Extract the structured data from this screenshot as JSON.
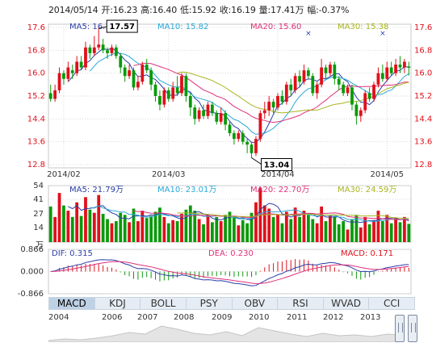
{
  "header": {
    "date": "2014/05/14",
    "open_label": "开:",
    "open": "16.23",
    "high_label": "高:",
    "high": "16.40",
    "low_label": "低:",
    "low": "15.92",
    "close_label": "收:",
    "close": "16.19",
    "vol_label": "量:",
    "volume": "17.41万",
    "chg_label": "幅:",
    "change": "-0.37%"
  },
  "colors": {
    "up": "#e0101b",
    "down": "#0a9a0a",
    "ma5": "#2a3fa8",
    "ma10": "#29a8d8",
    "ma20": "#e0307a",
    "ma30": "#a9b520",
    "grid": "#d9d9d9",
    "axis_up": "#e0101b"
  },
  "price_ma_legend": [
    {
      "label": "MA5: 16.16"
    },
    {
      "label": "MA10: 15.82"
    },
    {
      "label": "MA20: 15.60"
    },
    {
      "label": "MA30: 15.38"
    }
  ],
  "vol_ma_legend": [
    {
      "label": "MA5: 21.79万"
    },
    {
      "label": "MA10: 23.01万"
    },
    {
      "label": "MA20: 22.70万"
    },
    {
      "label": "MA30: 24.59万"
    }
  ],
  "macd_legend": {
    "dif": "DIF: 0.315",
    "dea": "DEA: 0.230",
    "macd": "MACD: 0.171"
  },
  "price_axis_labels": [
    "17.6",
    "16.8",
    "16.0",
    "15.2",
    "14.4",
    "13.6",
    "12.8"
  ],
  "vol_axis_labels": [
    "54",
    "41",
    "27",
    "14",
    "万"
  ],
  "macd_axis_labels": [
    "0.866",
    "0.000",
    "-0.866"
  ],
  "date_labels": [
    "2014/02",
    "2014/03",
    "2014/04",
    "2014/05"
  ],
  "annotations": {
    "high": "17.57",
    "low": "13.04"
  },
  "tabs": [
    "MACD",
    "KDJ",
    "BOLL",
    "PSY",
    "OBV",
    "RSI",
    "WVAD",
    "CCI"
  ],
  "active_tab": "MACD",
  "overview_years": [
    "2004",
    "2006",
    "2007",
    "2008",
    "2009",
    "2010",
    "2011",
    "2012",
    "2013"
  ],
  "chart_data": {
    "type": "candlestick",
    "price_range": [
      12.8,
      17.6
    ],
    "volume_range": [
      0,
      54
    ],
    "macd_range": [
      -0.866,
      0.866
    ],
    "candles": [
      {
        "o": 15.3,
        "c": 15.1,
        "h": 15.6,
        "l": 15.0,
        "v": 34
      },
      {
        "o": 15.1,
        "c": 15.4,
        "h": 15.6,
        "l": 15.0,
        "v": 24
      },
      {
        "o": 15.4,
        "c": 16.0,
        "h": 16.2,
        "l": 15.3,
        "v": 47
      },
      {
        "o": 16.0,
        "c": 15.8,
        "h": 16.1,
        "l": 15.6,
        "v": 35
      },
      {
        "o": 15.8,
        "c": 16.2,
        "h": 16.4,
        "l": 15.7,
        "v": 30
      },
      {
        "o": 16.1,
        "c": 16.0,
        "h": 16.3,
        "l": 15.8,
        "v": 24
      },
      {
        "o": 16.0,
        "c": 16.4,
        "h": 16.6,
        "l": 15.9,
        "v": 38
      },
      {
        "o": 16.4,
        "c": 16.2,
        "h": 16.6,
        "l": 16.1,
        "v": 25
      },
      {
        "o": 16.2,
        "c": 16.9,
        "h": 17.1,
        "l": 16.1,
        "v": 43
      },
      {
        "o": 16.9,
        "c": 16.7,
        "h": 17.0,
        "l": 16.5,
        "v": 31
      },
      {
        "o": 16.7,
        "c": 16.9,
        "h": 17.3,
        "l": 16.6,
        "v": 28
      },
      {
        "o": 16.9,
        "c": 17.0,
        "h": 17.57,
        "l": 16.8,
        "v": 45
      },
      {
        "o": 17.0,
        "c": 16.8,
        "h": 17.2,
        "l": 16.7,
        "v": 27
      },
      {
        "o": 16.8,
        "c": 16.7,
        "h": 16.9,
        "l": 16.5,
        "v": 22
      },
      {
        "o": 16.7,
        "c": 16.9,
        "h": 17.0,
        "l": 16.6,
        "v": 18
      },
      {
        "o": 16.9,
        "c": 16.6,
        "h": 17.0,
        "l": 16.5,
        "v": 20
      },
      {
        "o": 16.6,
        "c": 16.2,
        "h": 16.7,
        "l": 16.0,
        "v": 28
      },
      {
        "o": 16.2,
        "c": 15.9,
        "h": 16.3,
        "l": 15.7,
        "v": 26
      },
      {
        "o": 15.9,
        "c": 16.1,
        "h": 16.3,
        "l": 15.8,
        "v": 19
      },
      {
        "o": 16.1,
        "c": 15.5,
        "h": 16.2,
        "l": 15.4,
        "v": 32
      },
      {
        "o": 15.5,
        "c": 15.7,
        "h": 15.9,
        "l": 15.4,
        "v": 20
      },
      {
        "o": 15.7,
        "c": 16.3,
        "h": 16.4,
        "l": 15.6,
        "v": 30
      },
      {
        "o": 16.3,
        "c": 16.1,
        "h": 16.5,
        "l": 16.0,
        "v": 23
      },
      {
        "o": 16.1,
        "c": 15.6,
        "h": 16.2,
        "l": 15.4,
        "v": 25
      },
      {
        "o": 15.6,
        "c": 15.2,
        "h": 15.7,
        "l": 15.0,
        "v": 29
      },
      {
        "o": 15.2,
        "c": 14.9,
        "h": 15.4,
        "l": 14.7,
        "v": 33
      },
      {
        "o": 14.9,
        "c": 15.4,
        "h": 15.5,
        "l": 14.8,
        "v": 24
      },
      {
        "o": 15.4,
        "c": 15.1,
        "h": 15.5,
        "l": 15.0,
        "v": 18
      },
      {
        "o": 15.1,
        "c": 15.5,
        "h": 15.7,
        "l": 15.0,
        "v": 21
      },
      {
        "o": 15.5,
        "c": 15.3,
        "h": 15.9,
        "l": 15.2,
        "v": 20
      },
      {
        "o": 15.3,
        "c": 15.9,
        "h": 16.0,
        "l": 15.2,
        "v": 27
      },
      {
        "o": 15.9,
        "c": 15.2,
        "h": 16.0,
        "l": 15.0,
        "v": 31
      },
      {
        "o": 15.2,
        "c": 14.8,
        "h": 15.3,
        "l": 14.5,
        "v": 35
      },
      {
        "o": 14.8,
        "c": 14.4,
        "h": 14.9,
        "l": 14.2,
        "v": 30
      },
      {
        "o": 14.4,
        "c": 14.7,
        "h": 14.8,
        "l": 14.3,
        "v": 22
      },
      {
        "o": 14.7,
        "c": 14.5,
        "h": 14.9,
        "l": 14.4,
        "v": 17
      },
      {
        "o": 14.5,
        "c": 14.9,
        "h": 15.0,
        "l": 14.4,
        "v": 26
      },
      {
        "o": 14.9,
        "c": 14.6,
        "h": 15.0,
        "l": 14.5,
        "v": 19
      },
      {
        "o": 14.6,
        "c": 14.3,
        "h": 14.7,
        "l": 14.2,
        "v": 24
      },
      {
        "o": 14.3,
        "c": 14.6,
        "h": 14.8,
        "l": 14.2,
        "v": 20
      },
      {
        "o": 14.6,
        "c": 14.2,
        "h": 14.7,
        "l": 14.0,
        "v": 26
      },
      {
        "o": 14.2,
        "c": 13.9,
        "h": 14.3,
        "l": 13.8,
        "v": 29
      },
      {
        "o": 13.9,
        "c": 13.7,
        "h": 14.0,
        "l": 13.5,
        "v": 24
      },
      {
        "o": 13.7,
        "c": 13.9,
        "h": 14.0,
        "l": 13.6,
        "v": 16
      },
      {
        "o": 13.9,
        "c": 13.6,
        "h": 14.0,
        "l": 13.5,
        "v": 21
      },
      {
        "o": 13.6,
        "c": 13.5,
        "h": 13.7,
        "l": 13.2,
        "v": 18
      },
      {
        "o": 13.5,
        "c": 13.2,
        "h": 13.6,
        "l": 13.04,
        "v": 28
      },
      {
        "o": 13.2,
        "c": 13.7,
        "h": 13.8,
        "l": 13.1,
        "v": 38
      },
      {
        "o": 13.7,
        "c": 14.6,
        "h": 14.7,
        "l": 13.6,
        "v": 52
      },
      {
        "o": 14.6,
        "c": 14.7,
        "h": 15.0,
        "l": 14.4,
        "v": 35
      },
      {
        "o": 14.7,
        "c": 15.0,
        "h": 15.2,
        "l": 14.5,
        "v": 32
      },
      {
        "o": 15.0,
        "c": 14.8,
        "h": 15.1,
        "l": 14.6,
        "v": 24
      },
      {
        "o": 14.8,
        "c": 15.2,
        "h": 15.3,
        "l": 14.7,
        "v": 26
      },
      {
        "o": 15.2,
        "c": 15.0,
        "h": 15.4,
        "l": 14.9,
        "v": 18
      },
      {
        "o": 15.0,
        "c": 15.6,
        "h": 15.7,
        "l": 14.9,
        "v": 29
      },
      {
        "o": 15.6,
        "c": 15.4,
        "h": 15.8,
        "l": 15.2,
        "v": 22
      },
      {
        "o": 15.4,
        "c": 15.9,
        "h": 16.0,
        "l": 15.3,
        "v": 33
      },
      {
        "o": 15.9,
        "c": 15.7,
        "h": 16.1,
        "l": 15.5,
        "v": 24
      },
      {
        "o": 15.7,
        "c": 16.1,
        "h": 16.3,
        "l": 15.6,
        "v": 30
      },
      {
        "o": 16.1,
        "c": 15.9,
        "h": 16.2,
        "l": 15.8,
        "v": 26
      },
      {
        "o": 15.9,
        "c": 15.3,
        "h": 16.0,
        "l": 15.2,
        "v": 22
      },
      {
        "o": 15.3,
        "c": 15.6,
        "h": 15.7,
        "l": 15.1,
        "v": 18
      },
      {
        "o": 15.6,
        "c": 16.2,
        "h": 16.5,
        "l": 15.5,
        "v": 34
      },
      {
        "o": 16.2,
        "c": 16.0,
        "h": 16.3,
        "l": 15.8,
        "v": 20
      },
      {
        "o": 16.0,
        "c": 16.3,
        "h": 16.4,
        "l": 15.9,
        "v": 25
      },
      {
        "o": 16.3,
        "c": 15.8,
        "h": 16.4,
        "l": 15.6,
        "v": 24
      },
      {
        "o": 15.8,
        "c": 15.6,
        "h": 15.9,
        "l": 15.4,
        "v": 17
      },
      {
        "o": 15.6,
        "c": 15.3,
        "h": 15.7,
        "l": 15.2,
        "v": 20
      },
      {
        "o": 15.3,
        "c": 15.5,
        "h": 15.6,
        "l": 15.2,
        "v": 12
      },
      {
        "o": 15.5,
        "c": 14.9,
        "h": 15.6,
        "l": 14.7,
        "v": 22
      },
      {
        "o": 14.9,
        "c": 14.5,
        "h": 15.0,
        "l": 14.2,
        "v": 26
      },
      {
        "o": 14.5,
        "c": 14.7,
        "h": 14.8,
        "l": 14.3,
        "v": 14
      },
      {
        "o": 14.7,
        "c": 15.3,
        "h": 15.4,
        "l": 14.6,
        "v": 24
      },
      {
        "o": 15.3,
        "c": 15.1,
        "h": 15.5,
        "l": 15.0,
        "v": 17
      },
      {
        "o": 15.1,
        "c": 15.6,
        "h": 15.7,
        "l": 15.0,
        "v": 21
      },
      {
        "o": 15.6,
        "c": 16.0,
        "h": 16.2,
        "l": 15.5,
        "v": 30
      },
      {
        "o": 16.0,
        "c": 15.8,
        "h": 16.3,
        "l": 15.7,
        "v": 20
      },
      {
        "o": 15.8,
        "c": 16.2,
        "h": 16.4,
        "l": 15.7,
        "v": 26
      },
      {
        "o": 16.2,
        "c": 16.0,
        "h": 16.4,
        "l": 15.9,
        "v": 18
      },
      {
        "o": 16.0,
        "c": 16.3,
        "h": 16.5,
        "l": 15.9,
        "v": 23
      },
      {
        "o": 16.3,
        "c": 16.2,
        "h": 16.6,
        "l": 16.0,
        "v": 19
      },
      {
        "o": 16.2,
        "c": 16.4,
        "h": 16.5,
        "l": 16.0,
        "v": 24
      },
      {
        "o": 16.23,
        "c": 16.19,
        "h": 16.4,
        "l": 15.92,
        "v": 17.41
      }
    ]
  }
}
